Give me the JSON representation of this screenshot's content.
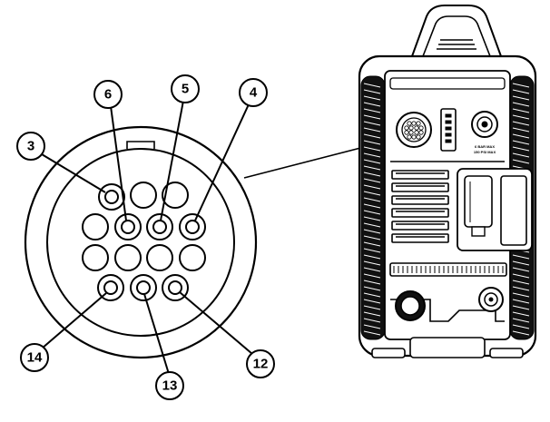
{
  "callouts": {
    "c3": "3",
    "c4": "4",
    "c5": "5",
    "c6": "6",
    "c12": "12",
    "c13": "13",
    "c14": "14"
  },
  "machine": {
    "gas_label_1": "6 BAR MAX",
    "gas_label_2": "150 PSI MAX"
  },
  "colors": {
    "line": "#000000",
    "fill": "#ffffff",
    "dark": "#111111"
  }
}
